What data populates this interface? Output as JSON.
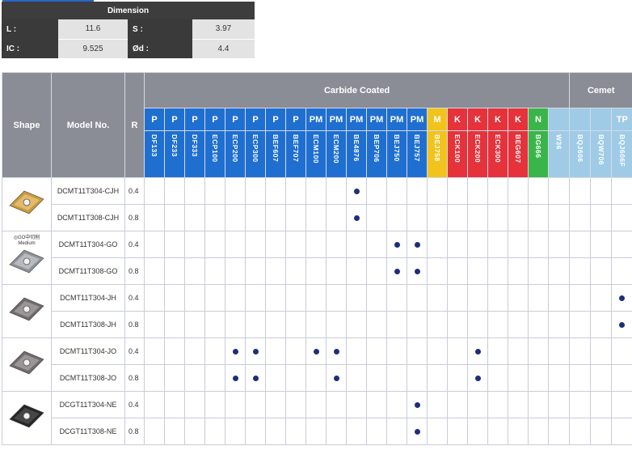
{
  "dimension": {
    "title": "Dimension",
    "rows": [
      {
        "k1": "L :",
        "v1": "11.6",
        "k2": "S :",
        "v2": "3.97"
      },
      {
        "k1": "IC :",
        "v1": "9.525",
        "k2": "Ød :",
        "v2": "4.4"
      }
    ]
  },
  "table": {
    "shape_header": "Shape",
    "model_header": "Model No.",
    "r_header": "R",
    "carbide_header": "Carbide Coated",
    "cermet_header": "Cemet",
    "grades": [
      {
        "cls": "P",
        "name": "DF133",
        "color": "blue"
      },
      {
        "cls": "P",
        "name": "DF233",
        "color": "blue"
      },
      {
        "cls": "P",
        "name": "DF333",
        "color": "blue"
      },
      {
        "cls": "P",
        "name": "ECP100",
        "color": "blue"
      },
      {
        "cls": "P",
        "name": "ECP200",
        "color": "blue"
      },
      {
        "cls": "P",
        "name": "ECP300",
        "color": "blue"
      },
      {
        "cls": "P",
        "name": "BEF607",
        "color": "blue"
      },
      {
        "cls": "P",
        "name": "BEF707",
        "color": "blue"
      },
      {
        "cls": "PM",
        "name": "ECM100",
        "color": "blue"
      },
      {
        "cls": "PM",
        "name": "ECM200",
        "color": "blue"
      },
      {
        "cls": "PM",
        "name": "BE4876",
        "color": "blue"
      },
      {
        "cls": "PM",
        "name": "BEP706",
        "color": "blue"
      },
      {
        "cls": "PM",
        "name": "BEJ750",
        "color": "blue"
      },
      {
        "cls": "PM",
        "name": "BEJ757",
        "color": "blue"
      },
      {
        "cls": "M",
        "name": "BEJ758",
        "color": "yellow"
      },
      {
        "cls": "K",
        "name": "ECK100",
        "color": "red"
      },
      {
        "cls": "K",
        "name": "ECK200",
        "color": "red"
      },
      {
        "cls": "K",
        "name": "ECK300",
        "color": "red"
      },
      {
        "cls": "K",
        "name": "BEG607",
        "color": "red"
      },
      {
        "cls": "N",
        "name": "BG666",
        "color": "green"
      },
      {
        "cls": "",
        "name": "W36",
        "color": "lightblue"
      },
      {
        "cls": "",
        "name": "BQJ606",
        "color": "lightblue"
      },
      {
        "cls": "",
        "name": "BQW706",
        "color": "lightblue"
      },
      {
        "cls": "TP",
        "name": "BQJ606F",
        "color": "lightblue"
      }
    ],
    "groups": [
      {
        "shape_icon": "insert-gold-icon",
        "shape_label": "",
        "rows": [
          {
            "model": "DCMT11T304-CJH",
            "r": "0.4",
            "dots": [
              10
            ]
          },
          {
            "model": "DCMT11T308-CJH",
            "r": "0.8",
            "dots": [
              10
            ]
          }
        ]
      },
      {
        "shape_icon": "insert-silver-medium-icon",
        "shape_label": "◎GO中切削\nMedium",
        "rows": [
          {
            "model": "DCMT11T304-GO",
            "r": "0.4",
            "dots": [
              12,
              13
            ]
          },
          {
            "model": "DCMT11T308-GO",
            "r": "0.8",
            "dots": [
              12,
              13
            ]
          }
        ]
      },
      {
        "shape_icon": "insert-gray-icon",
        "shape_label": "",
        "rows": [
          {
            "model": "DCMT11T304-JH",
            "r": "0.4",
            "dots": [
              23
            ]
          },
          {
            "model": "DCMT11T308-JH",
            "r": "0.8",
            "dots": [
              23
            ]
          }
        ]
      },
      {
        "shape_icon": "insert-gray-icon",
        "shape_label": "",
        "rows": [
          {
            "model": "DCMT11T304-JO",
            "r": "0.4",
            "dots": [
              4,
              5,
              8,
              9,
              16
            ]
          },
          {
            "model": "DCMT11T308-JO",
            "r": "0.8",
            "dots": [
              4,
              5,
              9,
              16
            ]
          }
        ]
      },
      {
        "shape_icon": "insert-black-icon",
        "shape_label": "",
        "rows": [
          {
            "model": "DCGT11T304-NE",
            "r": "0.4",
            "dots": [
              13
            ]
          },
          {
            "model": "DCGT11T308-NE",
            "r": "0.8",
            "dots": [
              13
            ]
          }
        ]
      }
    ]
  }
}
